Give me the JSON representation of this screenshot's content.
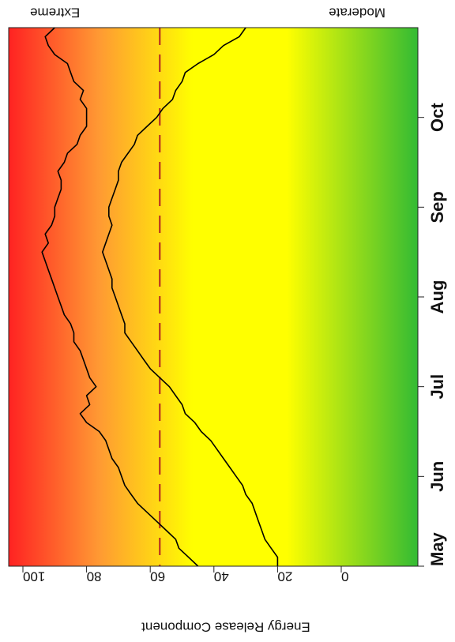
{
  "chart_data": {
    "type": "line",
    "orientation": "rotated-90",
    "title": "",
    "ylabel": "Energy Release Component",
    "xlabel": "",
    "ylim": [
      0,
      100
    ],
    "yticks": [
      0,
      20,
      40,
      60,
      80,
      100
    ],
    "xlim": [
      0,
      6
    ],
    "xticks": [
      {
        "value": 0,
        "label": "May"
      },
      {
        "value": 1,
        "label": "Jun"
      },
      {
        "value": 2,
        "label": "Jul"
      },
      {
        "value": 3,
        "label": "Aug"
      },
      {
        "value": 4,
        "label": "Sep"
      },
      {
        "value": 5,
        "label": "Oct"
      }
    ],
    "zone_labels": {
      "high": "Extreme",
      "low": "Moderate"
    },
    "background_gradient": [
      "#33bb33",
      "#ffff00",
      "#ffff00",
      "#ff9933",
      "#ff2222"
    ],
    "colors": {
      "series": "#000000",
      "reference": "#b22222"
    },
    "series": [
      {
        "values": [
          [
            0.0,
            45
          ],
          [
            0.1,
            48
          ],
          [
            0.2,
            51
          ],
          [
            0.3,
            52
          ],
          [
            0.4,
            55
          ],
          [
            0.5,
            58
          ],
          [
            0.6,
            61
          ],
          [
            0.7,
            64
          ],
          [
            0.8,
            66
          ],
          [
            0.9,
            68
          ],
          [
            1.0,
            69
          ],
          [
            1.1,
            70
          ],
          [
            1.2,
            72
          ],
          [
            1.3,
            73
          ],
          [
            1.4,
            74
          ],
          [
            1.5,
            76
          ],
          [
            1.6,
            80
          ],
          [
            1.7,
            82
          ],
          [
            1.8,
            79
          ],
          [
            1.9,
            80
          ],
          [
            2.0,
            77
          ],
          [
            2.1,
            79
          ],
          [
            2.2,
            80
          ],
          [
            2.3,
            81
          ],
          [
            2.4,
            82
          ],
          [
            2.5,
            84
          ],
          [
            2.6,
            84
          ],
          [
            2.7,
            85
          ],
          [
            2.8,
            87
          ],
          [
            2.9,
            88
          ],
          [
            3.0,
            89
          ],
          [
            3.1,
            90
          ],
          [
            3.2,
            91
          ],
          [
            3.3,
            92
          ],
          [
            3.4,
            93
          ],
          [
            3.5,
            94
          ],
          [
            3.6,
            92
          ],
          [
            3.7,
            93
          ],
          [
            3.8,
            91
          ],
          [
            3.9,
            90
          ],
          [
            4.0,
            90
          ],
          [
            4.1,
            89
          ],
          [
            4.2,
            88
          ],
          [
            4.3,
            88
          ],
          [
            4.4,
            89
          ],
          [
            4.5,
            87
          ],
          [
            4.6,
            86
          ],
          [
            4.7,
            83
          ],
          [
            4.8,
            82
          ],
          [
            4.9,
            80
          ],
          [
            5.0,
            80
          ],
          [
            5.1,
            80
          ],
          [
            5.2,
            82
          ],
          [
            5.3,
            81
          ],
          [
            5.4,
            84
          ],
          [
            5.5,
            85
          ],
          [
            5.6,
            86
          ],
          [
            5.7,
            90
          ],
          [
            5.8,
            92
          ],
          [
            5.9,
            93
          ],
          [
            6.0,
            90
          ]
        ]
      },
      {
        "values": [
          [
            0.0,
            20
          ],
          [
            0.1,
            20
          ],
          [
            0.2,
            22
          ],
          [
            0.3,
            24
          ],
          [
            0.4,
            25
          ],
          [
            0.5,
            26
          ],
          [
            0.6,
            27
          ],
          [
            0.7,
            28
          ],
          [
            0.8,
            30
          ],
          [
            0.9,
            31
          ],
          [
            1.0,
            33
          ],
          [
            1.1,
            35
          ],
          [
            1.2,
            37
          ],
          [
            1.3,
            39
          ],
          [
            1.4,
            41
          ],
          [
            1.5,
            44
          ],
          [
            1.6,
            46
          ],
          [
            1.7,
            49
          ],
          [
            1.8,
            50
          ],
          [
            1.9,
            52
          ],
          [
            2.0,
            54
          ],
          [
            2.1,
            57
          ],
          [
            2.2,
            60
          ],
          [
            2.3,
            62
          ],
          [
            2.4,
            64
          ],
          [
            2.5,
            66
          ],
          [
            2.6,
            68
          ],
          [
            2.7,
            68
          ],
          [
            2.8,
            69
          ],
          [
            2.9,
            70
          ],
          [
            3.0,
            71
          ],
          [
            3.1,
            72
          ],
          [
            3.2,
            72
          ],
          [
            3.3,
            73
          ],
          [
            3.4,
            74
          ],
          [
            3.5,
            75
          ],
          [
            3.6,
            74
          ],
          [
            3.7,
            73
          ],
          [
            3.8,
            72
          ],
          [
            3.9,
            73
          ],
          [
            4.0,
            73
          ],
          [
            4.1,
            72
          ],
          [
            4.2,
            71
          ],
          [
            4.3,
            70
          ],
          [
            4.4,
            70
          ],
          [
            4.5,
            69
          ],
          [
            4.6,
            67
          ],
          [
            4.7,
            65
          ],
          [
            4.8,
            64
          ],
          [
            4.9,
            61
          ],
          [
            5.0,
            58
          ],
          [
            5.1,
            56
          ],
          [
            5.2,
            53
          ],
          [
            5.3,
            52
          ],
          [
            5.4,
            50
          ],
          [
            5.5,
            49
          ],
          [
            5.6,
            45
          ],
          [
            5.7,
            40
          ],
          [
            5.8,
            37
          ],
          [
            5.9,
            32
          ],
          [
            6.0,
            30
          ]
        ]
      }
    ],
    "reference_lines": [
      {
        "value": 57,
        "style": "dashed"
      }
    ]
  }
}
